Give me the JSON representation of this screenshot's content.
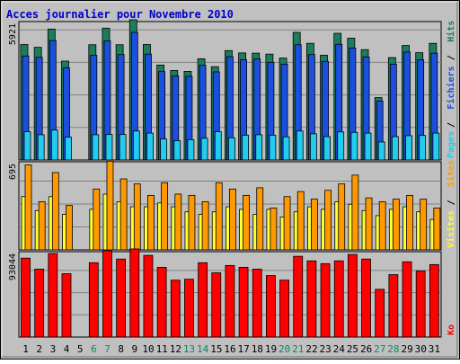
{
  "colors": {
    "background": "#c0c0c0",
    "grid": "#808080",
    "title": "#0000cc",
    "hits": "#1b7d5b",
    "files": "#1a4fe0",
    "pages": "#22ccee",
    "visits": "#ffff33",
    "sites": "#ff9900",
    "kb": "#ff0000",
    "weekend_label": "#0a8a5a"
  },
  "chart_data": [
    {
      "type": "bar",
      "title": "Acces journalier pour Novembre 2010",
      "y_max_label": "5921",
      "ylim": [
        0,
        5921
      ],
      "legend": [
        {
          "name": "Pages",
          "color": "#22ccee"
        },
        {
          "name": "Fichiers",
          "color": "#1a4fe0"
        },
        {
          "name": "Hits",
          "color": "#1b7d5b"
        }
      ],
      "legend_placement": "right",
      "categories": [
        "1",
        "2",
        "3",
        "4",
        "5",
        "6",
        "7",
        "8",
        "9",
        "10",
        "11",
        "12",
        "13",
        "14",
        "15",
        "16",
        "17",
        "18",
        "19",
        "20",
        "21",
        "22",
        "23",
        "24",
        "25",
        "26",
        "27",
        "28",
        "29",
        "30",
        "31"
      ],
      "series": [
        {
          "name": "Hits",
          "values": [
            4940,
            4820,
            5600,
            4230,
            0,
            4930,
            5640,
            4930,
            6000,
            4940,
            4060,
            3830,
            3790,
            4330,
            3990,
            4680,
            4580,
            4570,
            4530,
            4360,
            5460,
            4990,
            4480,
            5420,
            5210,
            4720,
            2670,
            4380,
            4900,
            4590,
            4990
          ]
        },
        {
          "name": "Fichiers",
          "values": [
            4450,
            4390,
            5110,
            3940,
            0,
            4480,
            5100,
            4510,
            5460,
            4530,
            3780,
            3600,
            3580,
            4050,
            3770,
            4420,
            4290,
            4320,
            4180,
            4100,
            4930,
            4510,
            4220,
            4950,
            4790,
            4410,
            2520,
            4100,
            4620,
            4290,
            4570
          ]
        },
        {
          "name": "Pages",
          "values": [
            1210,
            1080,
            1280,
            980,
            0,
            1080,
            1090,
            1090,
            1240,
            1150,
            900,
            820,
            870,
            930,
            1210,
            950,
            1060,
            1080,
            1060,
            990,
            1240,
            1120,
            1000,
            1200,
            1180,
            1150,
            770,
            1000,
            1040,
            1050,
            1150
          ]
        }
      ]
    },
    {
      "type": "bar",
      "y_max_label": "695",
      "ylim": [
        0,
        695
      ],
      "legend": [
        {
          "name": "Visites",
          "color": "#ffff33"
        },
        {
          "name": "Sites",
          "color": "#ff9900"
        }
      ],
      "legend_placement": "right",
      "categories": [
        "1",
        "2",
        "3",
        "4",
        "5",
        "6",
        "7",
        "8",
        "9",
        "10",
        "11",
        "12",
        "13",
        "14",
        "15",
        "16",
        "17",
        "18",
        "19",
        "20",
        "21",
        "22",
        "23",
        "24",
        "25",
        "26",
        "27",
        "28",
        "29",
        "30",
        "31"
      ],
      "series": [
        {
          "name": "Visites",
          "values": [
            420,
            310,
            420,
            280,
            0,
            320,
            440,
            380,
            340,
            340,
            370,
            340,
            300,
            280,
            300,
            340,
            320,
            280,
            320,
            260,
            300,
            340,
            320,
            380,
            360,
            310,
            270,
            320,
            340,
            300,
            240
          ]
        },
        {
          "name": "Sites",
          "values": [
            670,
            380,
            610,
            350,
            0,
            480,
            700,
            560,
            520,
            430,
            530,
            440,
            430,
            380,
            530,
            480,
            430,
            490,
            330,
            420,
            460,
            400,
            470,
            520,
            590,
            410,
            380,
            400,
            430,
            400,
            330
          ]
        }
      ]
    },
    {
      "type": "bar",
      "y_max_label": "93044",
      "ylim": [
        0,
        93044
      ],
      "legend": [
        {
          "name": "Ko",
          "color": "#ff0000"
        }
      ],
      "legend_placement": "right",
      "categories": [
        "1",
        "2",
        "3",
        "4",
        "5",
        "6",
        "7",
        "8",
        "9",
        "10",
        "11",
        "12",
        "13",
        "14",
        "15",
        "16",
        "17",
        "18",
        "19",
        "20",
        "21",
        "22",
        "23",
        "24",
        "25",
        "26",
        "27",
        "28",
        "29",
        "30",
        "31"
      ],
      "series": [
        {
          "name": "Ko",
          "values": [
            86000,
            74000,
            91000,
            69000,
            0,
            81000,
            94000,
            85000,
            96000,
            89000,
            76000,
            62000,
            63000,
            81000,
            70000,
            78000,
            76000,
            74000,
            67000,
            62000,
            88000,
            83000,
            80000,
            83000,
            90000,
            85000,
            52000,
            68000,
            82000,
            72000,
            79000
          ]
        }
      ]
    }
  ],
  "x_labels": [
    "1",
    "2",
    "3",
    "4",
    "5",
    "6",
    "7",
    "8",
    "9",
    "10",
    "11",
    "12",
    "13",
    "14",
    "15",
    "16",
    "17",
    "18",
    "19",
    "20",
    "21",
    "22",
    "23",
    "24",
    "25",
    "26",
    "27",
    "28",
    "29",
    "30",
    "31"
  ],
  "weekend_days": [
    "6",
    "7",
    "13",
    "14",
    "20",
    "21",
    "27",
    "28"
  ]
}
